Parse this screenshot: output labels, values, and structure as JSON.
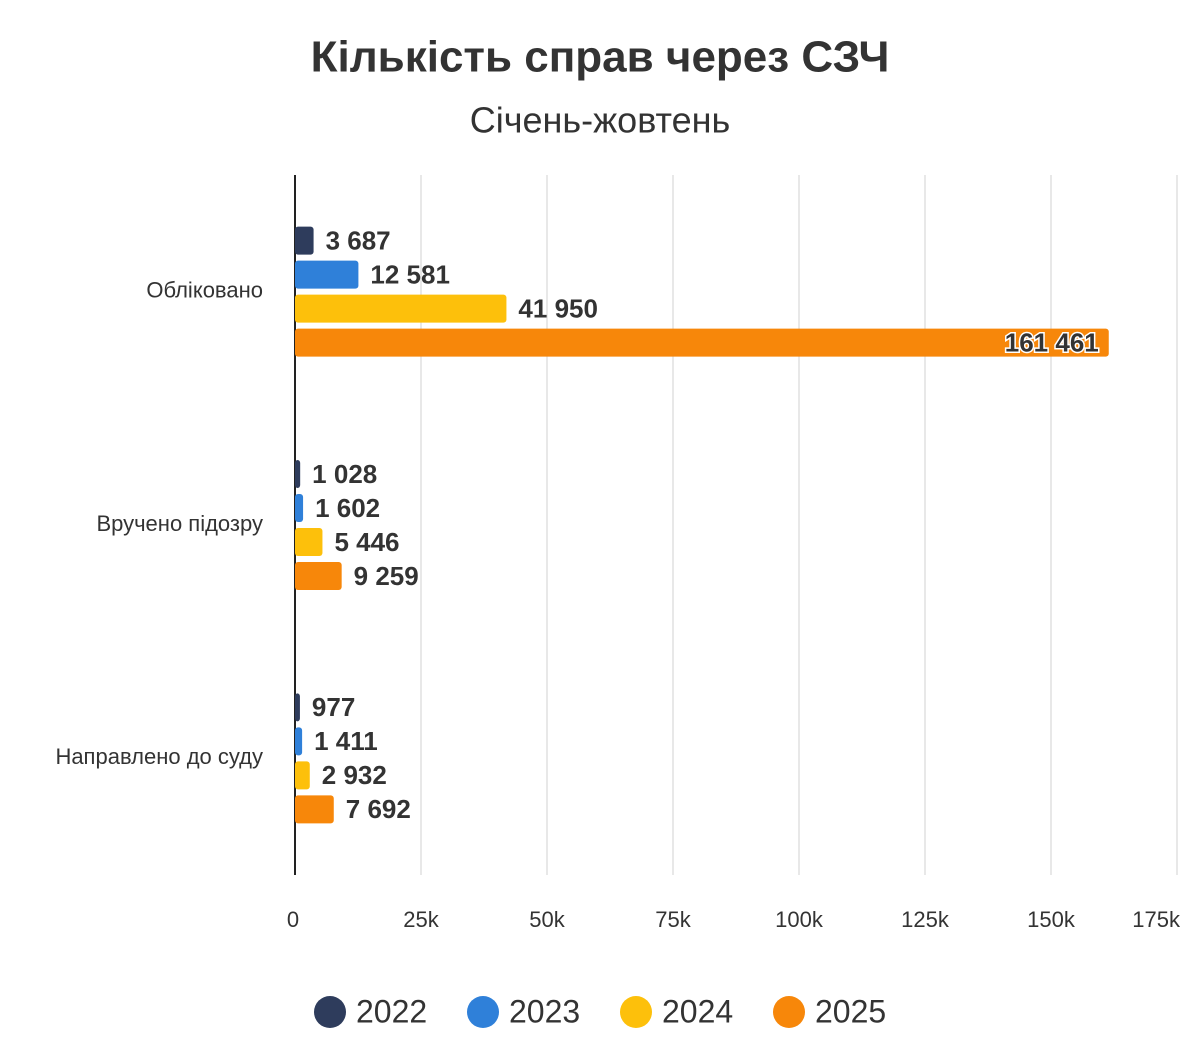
{
  "chart_data": {
    "type": "hbar",
    "title": "Кількість справ через СЗЧ",
    "subtitle": "Січень-жовтень",
    "categories": [
      "Обліковано",
      "Вручено підозру",
      "Направлено до суду"
    ],
    "series": [
      {
        "name": "2022",
        "color": "#2e3c5c",
        "values": [
          3687,
          1028,
          977
        ],
        "value_labels": [
          "3 687",
          "1 028",
          "977"
        ]
      },
      {
        "name": "2023",
        "color": "#2f80d9",
        "values": [
          12581,
          1602,
          1411
        ],
        "value_labels": [
          "12 581",
          "1 602",
          "1 411"
        ]
      },
      {
        "name": "2024",
        "color": "#fdc00b",
        "values": [
          41950,
          5446,
          2932
        ],
        "value_labels": [
          "41 950",
          "5 446",
          "2 932"
        ]
      },
      {
        "name": "2025",
        "color": "#f7870a",
        "values": [
          161461,
          9259,
          7692
        ],
        "value_labels": [
          "161 461",
          "9 259",
          "7 692"
        ]
      }
    ],
    "xlim": [
      0,
      175000
    ],
    "xticks": [
      0,
      {
        "value": 25000,
        "label": "25k"
      },
      {
        "value": 50000,
        "label": "50k"
      },
      {
        "value": 75000,
        "label": "75k"
      },
      {
        "value": 100000,
        "label": "100k"
      },
      {
        "value": 125000,
        "label": "125k"
      },
      {
        "value": 150000,
        "label": "150k"
      },
      {
        "value": 175000,
        "label": "175k"
      }
    ],
    "grid": true,
    "legend": "bottom"
  }
}
